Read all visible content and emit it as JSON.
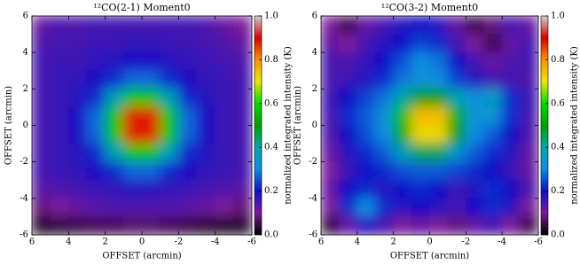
{
  "chart_data": [
    {
      "type": "heatmap",
      "title": "¹²CO(2-1) Moment0",
      "xlabel": "OFFSET (arcmin)",
      "ylabel": "OFFSET (arcmin)",
      "xlim": [
        6,
        -6
      ],
      "ylim": [
        -6,
        6
      ],
      "xticks": [
        6,
        4,
        2,
        0,
        -2,
        -4,
        -6
      ],
      "yticks": [
        -6,
        -4,
        -2,
        0,
        2,
        4,
        6
      ],
      "x": [
        5.5,
        4.5,
        3.5,
        2.5,
        1.5,
        0.5,
        -0.5,
        -1.5,
        -2.5,
        -3.5,
        -4.5,
        -5.5
      ],
      "y": [
        5.5,
        4.5,
        3.5,
        2.5,
        1.5,
        0.5,
        -0.5,
        -1.5,
        -2.5,
        -3.5,
        -4.5,
        -5.5
      ],
      "z": [
        [
          0.12,
          0.14,
          0.14,
          0.15,
          0.15,
          0.15,
          0.15,
          0.15,
          0.15,
          0.14,
          0.12,
          0.1
        ],
        [
          0.14,
          0.15,
          0.15,
          0.16,
          0.16,
          0.17,
          0.17,
          0.16,
          0.16,
          0.15,
          0.14,
          0.12
        ],
        [
          0.15,
          0.16,
          0.16,
          0.17,
          0.18,
          0.19,
          0.19,
          0.18,
          0.17,
          0.16,
          0.15,
          0.14
        ],
        [
          0.15,
          0.16,
          0.17,
          0.19,
          0.22,
          0.27,
          0.27,
          0.22,
          0.19,
          0.17,
          0.16,
          0.15
        ],
        [
          0.15,
          0.16,
          0.18,
          0.22,
          0.37,
          0.56,
          0.56,
          0.37,
          0.22,
          0.18,
          0.16,
          0.15
        ],
        [
          0.15,
          0.16,
          0.19,
          0.27,
          0.56,
          0.88,
          0.88,
          0.56,
          0.27,
          0.19,
          0.16,
          0.15
        ],
        [
          0.15,
          0.16,
          0.19,
          0.27,
          0.56,
          0.88,
          0.88,
          0.56,
          0.27,
          0.19,
          0.16,
          0.15
        ],
        [
          0.15,
          0.16,
          0.18,
          0.22,
          0.37,
          0.56,
          0.56,
          0.37,
          0.22,
          0.18,
          0.16,
          0.15
        ],
        [
          0.15,
          0.16,
          0.17,
          0.19,
          0.22,
          0.27,
          0.27,
          0.22,
          0.19,
          0.17,
          0.16,
          0.15
        ],
        [
          0.13,
          0.14,
          0.15,
          0.16,
          0.17,
          0.18,
          0.18,
          0.17,
          0.16,
          0.15,
          0.14,
          0.13
        ],
        [
          0.08,
          0.1,
          0.12,
          0.13,
          0.14,
          0.14,
          0.14,
          0.14,
          0.13,
          0.12,
          0.1,
          0.08
        ],
        [
          0.03,
          0.04,
          0.05,
          0.06,
          0.06,
          0.07,
          0.07,
          0.06,
          0.05,
          0.04,
          0.03,
          0.03
        ]
      ],
      "colorbar": {
        "label": "normalized integrated intensity (K)",
        "lim": [
          0,
          1
        ],
        "ticks": [
          {
            "value": 0,
            "label": "0.0"
          },
          0.2,
          0.4,
          0.6,
          0.8,
          {
            "value": 1,
            "label": "1.0"
          }
        ]
      },
      "colormap": [
        "#000000",
        "#7a1a9a",
        "#1010c8",
        "#0a8ee0",
        "#00a8a8",
        "#00a000",
        "#00dc00",
        "#e8e800",
        "#ff9000",
        "#d80000",
        "#d0d0d0"
      ]
    },
    {
      "type": "heatmap",
      "title": "¹²CO(3-2) Moment0",
      "xlabel": "OFFSET (arcmin)",
      "ylabel": "OFFSET (arcmin)",
      "xlim": [
        6,
        -6
      ],
      "ylim": [
        -6,
        6
      ],
      "xticks": [
        6,
        4,
        2,
        0,
        -2,
        -4,
        -6
      ],
      "yticks": [
        -6,
        -4,
        -2,
        0,
        2,
        4,
        6
      ],
      "x": [
        5.5,
        4.5,
        3.5,
        2.5,
        1.5,
        0.5,
        -0.5,
        -1.5,
        -2.5,
        -3.5,
        -4.5,
        -5.5
      ],
      "y": [
        5.5,
        4.5,
        3.5,
        2.5,
        1.5,
        0.5,
        -0.5,
        -1.5,
        -2.5,
        -3.5,
        -4.5,
        -5.5
      ],
      "z": [
        [
          0.1,
          0.05,
          0.12,
          0.15,
          0.18,
          0.2,
          0.18,
          0.12,
          0.05,
          0.08,
          0.15,
          0.12
        ],
        [
          0.12,
          0.1,
          0.15,
          0.18,
          0.2,
          0.24,
          0.22,
          0.15,
          0.1,
          0.05,
          0.12,
          0.15
        ],
        [
          0.15,
          0.14,
          0.17,
          0.2,
          0.25,
          0.3,
          0.28,
          0.2,
          0.15,
          0.12,
          0.14,
          0.15
        ],
        [
          0.14,
          0.16,
          0.18,
          0.22,
          0.28,
          0.32,
          0.3,
          0.24,
          0.18,
          0.15,
          0.15,
          0.14
        ],
        [
          0.16,
          0.2,
          0.24,
          0.28,
          0.4,
          0.5,
          0.5,
          0.38,
          0.3,
          0.35,
          0.22,
          0.16
        ],
        [
          0.15,
          0.22,
          0.26,
          0.32,
          0.55,
          0.75,
          0.75,
          0.52,
          0.32,
          0.32,
          0.22,
          0.15
        ],
        [
          0.14,
          0.2,
          0.25,
          0.3,
          0.52,
          0.72,
          0.72,
          0.5,
          0.3,
          0.26,
          0.2,
          0.14
        ],
        [
          0.12,
          0.18,
          0.22,
          0.26,
          0.36,
          0.45,
          0.45,
          0.34,
          0.26,
          0.22,
          0.18,
          0.12
        ],
        [
          0.1,
          0.16,
          0.2,
          0.22,
          0.25,
          0.26,
          0.26,
          0.24,
          0.22,
          0.2,
          0.16,
          0.12
        ],
        [
          0.12,
          0.2,
          0.22,
          0.18,
          0.2,
          0.22,
          0.2,
          0.16,
          0.18,
          0.22,
          0.2,
          0.14
        ],
        [
          0.1,
          0.22,
          0.3,
          0.22,
          0.18,
          0.2,
          0.18,
          0.15,
          0.2,
          0.22,
          0.18,
          0.1
        ],
        [
          0.04,
          0.12,
          0.18,
          0.15,
          0.1,
          0.12,
          0.1,
          0.08,
          0.12,
          0.15,
          0.1,
          0.05
        ]
      ],
      "colorbar": {
        "label": "normalized integrated intensity (K)",
        "lim": [
          0,
          1
        ],
        "ticks": [
          {
            "value": 0,
            "label": "0.0"
          },
          0.2,
          0.4,
          0.6,
          0.8,
          {
            "value": 1,
            "label": "1.0"
          }
        ]
      },
      "colormap": [
        "#000000",
        "#7a1a9a",
        "#1010c8",
        "#0a8ee0",
        "#00a8a8",
        "#00a000",
        "#00dc00",
        "#e8e800",
        "#ff9000",
        "#d80000",
        "#d0d0d0"
      ]
    }
  ]
}
